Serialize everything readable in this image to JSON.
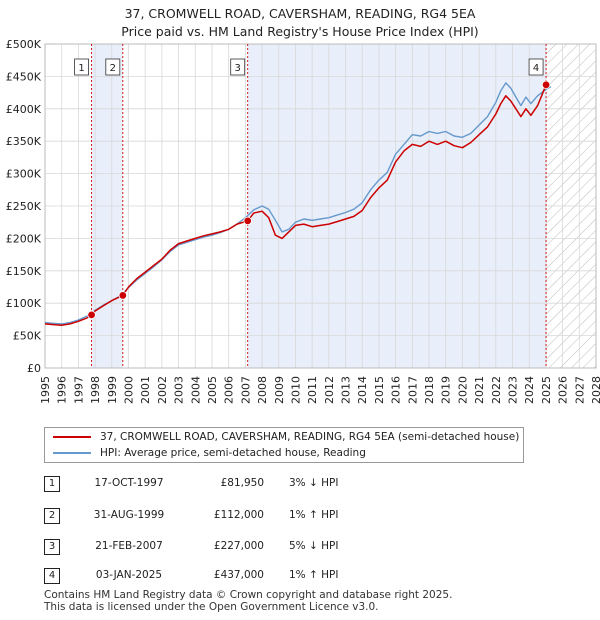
{
  "title_line1": "37, CROMWELL ROAD, CAVERSHAM, READING, RG4 5EA",
  "title_line2": "Price paid vs. HM Land Registry's House Price Index (HPI)",
  "colors": {
    "price": "#cc0000",
    "hpi": "#6699cc",
    "shade": "#e8eefa",
    "marker": "#cc0000"
  },
  "chart_data": {
    "type": "line",
    "title": "Price paid vs. HM Land Registry's House Price Index (HPI)",
    "xlim": [
      1995,
      2028
    ],
    "ylim": [
      0,
      500000
    ],
    "x_ticks": [
      "1995",
      "1996",
      "1997",
      "1998",
      "1999",
      "2000",
      "2001",
      "2002",
      "2003",
      "2004",
      "2005",
      "2006",
      "2007",
      "2008",
      "2009",
      "2010",
      "2011",
      "2012",
      "2013",
      "2014",
      "2015",
      "2016",
      "2017",
      "2018",
      "2019",
      "2020",
      "2021",
      "2022",
      "2023",
      "2024",
      "2025",
      "2026",
      "2027",
      "2028"
    ],
    "y_ticks": [
      {
        "value": 0,
        "label": "£0"
      },
      {
        "value": 50000,
        "label": "£50K"
      },
      {
        "value": 100000,
        "label": "£100K"
      },
      {
        "value": 150000,
        "label": "£150K"
      },
      {
        "value": 200000,
        "label": "£200K"
      },
      {
        "value": 250000,
        "label": "£250K"
      },
      {
        "value": 300000,
        "label": "£300K"
      },
      {
        "value": 350000,
        "label": "£350K"
      },
      {
        "value": 400000,
        "label": "£400K"
      },
      {
        "value": 450000,
        "label": "£450K"
      },
      {
        "value": 500000,
        "label": "£500K"
      }
    ],
    "series": [
      {
        "name": "37, CROMWELL ROAD, CAVERSHAM, READING, RG4 5EA (semi-detached house)",
        "color": "#cc0000",
        "x": [
          1995.0,
          1995.5,
          1996.0,
          1996.5,
          1997.0,
          1997.5,
          1997.79,
          1998.0,
          1998.5,
          1999.0,
          1999.66,
          2000.0,
          2000.5,
          2001.0,
          2001.5,
          2002.0,
          2002.5,
          2003.0,
          2003.5,
          2004.0,
          2004.5,
          2005.0,
          2005.5,
          2006.0,
          2006.5,
          2007.14,
          2007.5,
          2008.0,
          2008.4,
          2008.8,
          2009.2,
          2009.6,
          2010.0,
          2010.5,
          2011.0,
          2011.5,
          2012.0,
          2012.5,
          2013.0,
          2013.5,
          2014.0,
          2014.5,
          2015.0,
          2015.5,
          2016.0,
          2016.5,
          2017.0,
          2017.5,
          2018.0,
          2018.5,
          2019.0,
          2019.5,
          2020.0,
          2020.5,
          2021.0,
          2021.5,
          2022.0,
          2022.3,
          2022.6,
          2022.9,
          2023.2,
          2023.5,
          2023.8,
          2024.1,
          2024.5,
          2025.01
        ],
        "values": [
          68000,
          67000,
          66000,
          68000,
          72000,
          77000,
          81950,
          88000,
          96000,
          104000,
          112000,
          125000,
          138000,
          148000,
          158000,
          168000,
          182000,
          192000,
          196000,
          200000,
          204000,
          207000,
          210000,
          214000,
          222000,
          227000,
          239000,
          242000,
          232000,
          205000,
          200000,
          210000,
          220000,
          222000,
          218000,
          220000,
          222000,
          226000,
          230000,
          234000,
          243000,
          263000,
          278000,
          290000,
          318000,
          335000,
          345000,
          342000,
          350000,
          345000,
          350000,
          343000,
          340000,
          348000,
          360000,
          372000,
          392000,
          408000,
          420000,
          412000,
          400000,
          388000,
          400000,
          390000,
          405000,
          437000
        ]
      },
      {
        "name": "HPI: Average price, semi-detached house, Reading",
        "color": "#6699cc",
        "x": [
          1995.0,
          1995.5,
          1996.0,
          1996.5,
          1997.0,
          1997.5,
          1998.0,
          1998.5,
          1999.0,
          1999.5,
          2000.0,
          2000.5,
          2001.0,
          2001.5,
          2002.0,
          2002.5,
          2003.0,
          2003.5,
          2004.0,
          2004.5,
          2005.0,
          2005.5,
          2006.0,
          2006.5,
          2007.0,
          2007.5,
          2008.0,
          2008.4,
          2008.8,
          2009.2,
          2009.6,
          2010.0,
          2010.5,
          2011.0,
          2011.5,
          2012.0,
          2012.5,
          2013.0,
          2013.5,
          2014.0,
          2014.5,
          2015.0,
          2015.5,
          2016.0,
          2016.5,
          2017.0,
          2017.5,
          2018.0,
          2018.5,
          2019.0,
          2019.5,
          2020.0,
          2020.5,
          2021.0,
          2021.5,
          2022.0,
          2022.3,
          2022.6,
          2022.9,
          2023.2,
          2023.5,
          2023.8,
          2024.1,
          2024.5,
          2025.0,
          2025.3
        ],
        "values": [
          70000,
          69000,
          68000,
          70000,
          74000,
          80000,
          89000,
          97000,
          104000,
          111000,
          124000,
          136000,
          146000,
          156000,
          167000,
          180000,
          190000,
          194000,
          198000,
          202000,
          205000,
          209000,
          214000,
          222000,
          232000,
          244000,
          250000,
          245000,
          228000,
          210000,
          214000,
          225000,
          230000,
          228000,
          230000,
          232000,
          236000,
          240000,
          245000,
          255000,
          275000,
          290000,
          302000,
          330000,
          345000,
          360000,
          358000,
          365000,
          362000,
          365000,
          358000,
          356000,
          362000,
          375000,
          388000,
          410000,
          428000,
          440000,
          432000,
          418000,
          405000,
          418000,
          408000,
          420000,
          430000,
          434000
        ]
      }
    ],
    "sales": [
      {
        "num": "1",
        "date": "17-OCT-1997",
        "price": "£81,950",
        "value": 81950,
        "x": 1997.79,
        "hpi": "3% ↓ HPI"
      },
      {
        "num": "2",
        "date": "31-AUG-1999",
        "price": "£112,000",
        "value": 112000,
        "x": 1999.66,
        "hpi": "1% ↑ HPI"
      },
      {
        "num": "3",
        "date": "21-FEB-2007",
        "price": "£227,000",
        "value": 227000,
        "x": 2007.14,
        "hpi": "5% ↓ HPI"
      },
      {
        "num": "4",
        "date": "03-JAN-2025",
        "price": "£437,000",
        "value": 437000,
        "x": 2025.01,
        "hpi": "1% ↑ HPI"
      }
    ],
    "shaded_ranges": [
      [
        1997.79,
        1999.66
      ],
      [
        2007.14,
        2025.01
      ]
    ],
    "future_hatch_from": 2025.01,
    "grid": true
  },
  "legend": {
    "price_label": "37, CROMWELL ROAD, CAVERSHAM, READING, RG4 5EA (semi-detached house)",
    "hpi_label": "HPI: Average price, semi-detached house, Reading"
  },
  "footer": {
    "line1": "Contains HM Land Registry data © Crown copyright and database right 2025.",
    "line2": "This data is licensed under the Open Government Licence v3.0."
  }
}
